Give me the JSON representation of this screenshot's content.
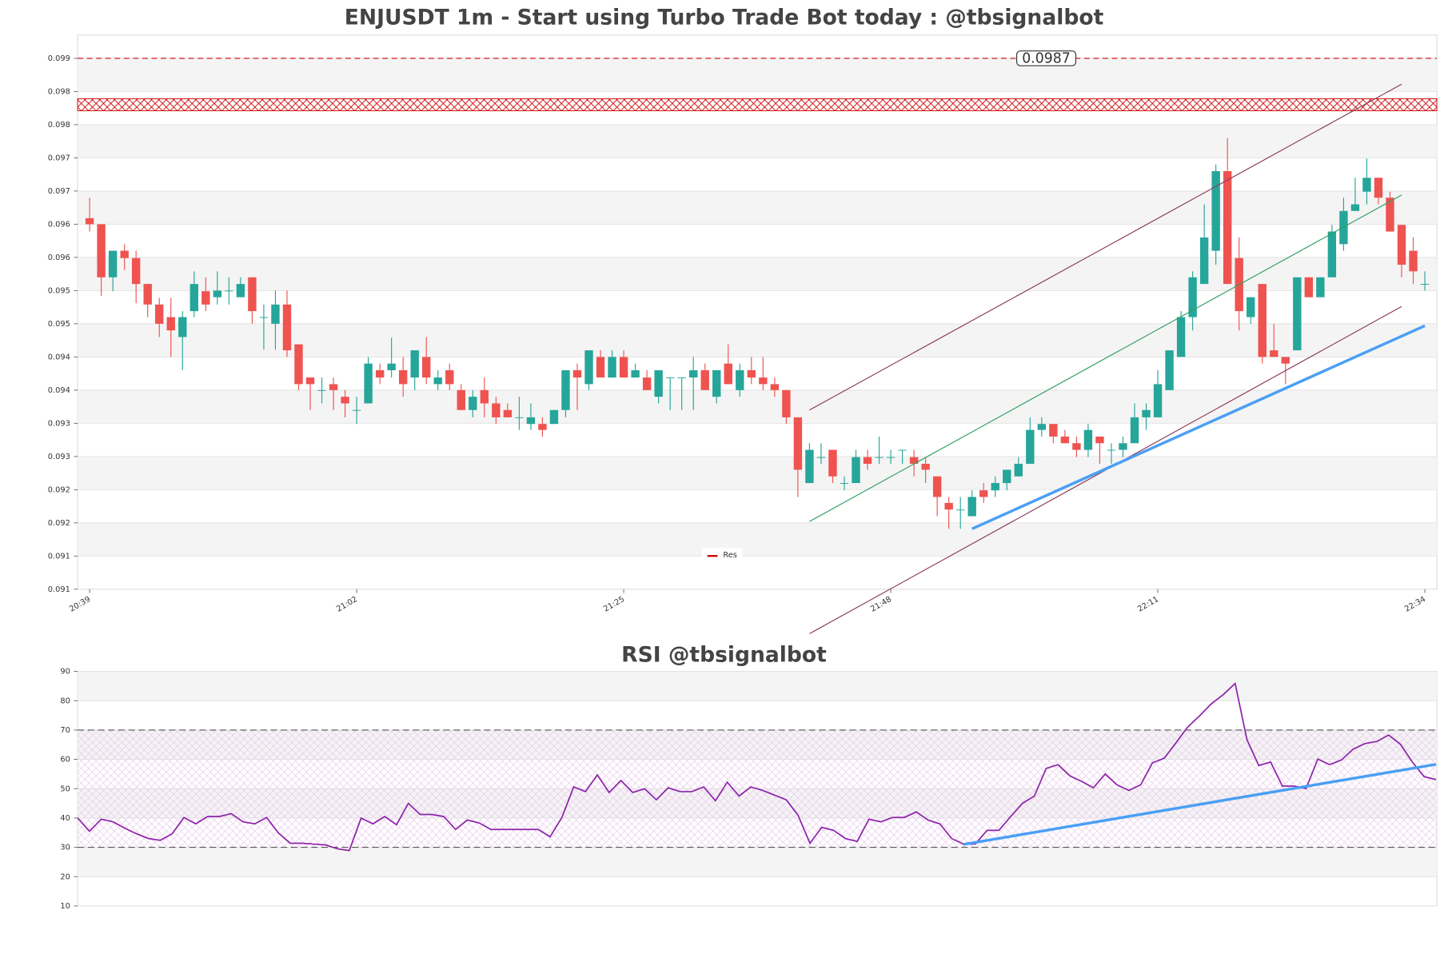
{
  "chart_data": [
    {
      "type": "candlestick",
      "title": "ENJUSDT 1m - Start using Turbo Trade Bot today : @tbsignalbot",
      "categories": [
        "20:39",
        null,
        null,
        null,
        null,
        null,
        null,
        null,
        null,
        null,
        null,
        null,
        null,
        null,
        null,
        null,
        null,
        null,
        null,
        null,
        null,
        null,
        null,
        "21:02",
        null,
        null,
        null,
        null,
        null,
        null,
        null,
        null,
        null,
        null,
        null,
        null,
        null,
        null,
        null,
        null,
        null,
        null,
        null,
        null,
        null,
        null,
        "21:25",
        null,
        null,
        null,
        null,
        null,
        null,
        null,
        null,
        null,
        null,
        null,
        null,
        null,
        null,
        null,
        null,
        null,
        null,
        null,
        null,
        null,
        null,
        "21:48",
        null,
        null,
        null,
        null,
        null,
        null,
        null,
        null,
        null,
        null,
        null,
        null,
        null,
        null,
        null,
        null,
        null,
        null,
        null,
        null,
        null,
        null,
        "22:11",
        null,
        null,
        null,
        null,
        null,
        null,
        null,
        null,
        null,
        null,
        null,
        null,
        null,
        null,
        null,
        null,
        null,
        null,
        null,
        null,
        null,
        null,
        "22:34"
      ],
      "open": [
        0.09629,
        0.0962,
        0.0954,
        0.0958,
        0.09569,
        0.0953,
        0.09499,
        0.0948,
        0.0945,
        0.09489,
        0.09519,
        0.0951,
        0.09519,
        0.0951,
        0.0954,
        0.0948,
        0.0947,
        0.09499,
        0.09439,
        0.09389,
        0.0937,
        0.09379,
        0.0936,
        0.0934,
        0.0935,
        0.094,
        0.094,
        0.094,
        0.09389,
        0.0942,
        0.09379,
        0.094,
        0.0937,
        0.0934,
        0.0937,
        0.0935,
        0.0934,
        0.09329,
        0.09319,
        0.09319,
        0.09319,
        0.0934,
        0.094,
        0.09379,
        0.0942,
        0.09389,
        0.0942,
        0.09389,
        0.09389,
        0.0936,
        0.09389,
        0.09389,
        0.09389,
        0.094,
        0.0936,
        0.0941,
        0.0937,
        0.094,
        0.09389,
        0.09379,
        0.0937,
        0.09329,
        0.0923,
        0.09269,
        0.0928,
        0.0923,
        0.0923,
        0.09269,
        0.09269,
        0.09269,
        0.0928,
        0.09269,
        0.09259,
        0.0924,
        0.092,
        0.0919,
        0.0918,
        0.09219,
        0.09219,
        0.0923,
        0.0924,
        0.09259,
        0.0931,
        0.09319,
        0.093,
        0.0929,
        0.0928,
        0.093,
        0.0928,
        0.0928,
        0.0929,
        0.09329,
        0.09329,
        0.0937,
        0.0942,
        0.0948,
        0.0953,
        0.0958,
        0.097,
        0.09569,
        0.0948,
        0.0953,
        0.0943,
        0.0942,
        0.0943,
        0.0954,
        0.0951,
        0.0954,
        0.0959,
        0.0964,
        0.09669,
        0.0969,
        0.0966,
        0.09619,
        0.0958,
        0.0953
      ],
      "high": [
        0.0966,
        0.0962,
        0.0958,
        0.0959,
        0.0958,
        0.0953,
        0.09509,
        0.09509,
        0.09489,
        0.09549,
        0.0954,
        0.09549,
        0.0954,
        0.0954,
        0.0954,
        0.09499,
        0.0952,
        0.0952,
        0.09439,
        0.09389,
        0.09389,
        0.09389,
        0.0937,
        0.0936,
        0.0942,
        0.0941,
        0.09449,
        0.0942,
        0.0943,
        0.0945,
        0.094,
        0.0941,
        0.09379,
        0.0937,
        0.09389,
        0.0936,
        0.0935,
        0.0936,
        0.0935,
        0.09329,
        0.0934,
        0.094,
        0.0941,
        0.0943,
        0.0943,
        0.0943,
        0.0943,
        0.0941,
        0.094,
        0.094,
        0.09389,
        0.09389,
        0.0942,
        0.0941,
        0.094,
        0.09439,
        0.0941,
        0.0942,
        0.0942,
        0.09389,
        0.0937,
        0.09329,
        0.0929,
        0.0929,
        0.0928,
        0.0924,
        0.0928,
        0.0928,
        0.093,
        0.0928,
        0.0928,
        0.0928,
        0.09269,
        0.0924,
        0.09209,
        0.09209,
        0.09219,
        0.0923,
        0.0924,
        0.0925,
        0.09269,
        0.09329,
        0.09329,
        0.09319,
        0.0931,
        0.093,
        0.09319,
        0.093,
        0.0929,
        0.093,
        0.0935,
        0.0935,
        0.094,
        0.0943,
        0.09489,
        0.09549,
        0.0965,
        0.0971,
        0.0975,
        0.096,
        0.0951,
        0.0953,
        0.0947,
        0.0942,
        0.0954,
        0.0954,
        0.0954,
        0.09619,
        0.0966,
        0.0969,
        0.09719,
        0.0969,
        0.09669,
        0.09619,
        0.096,
        0.09549
      ],
      "low": [
        0.09609,
        0.09512,
        0.09519,
        0.09551,
        0.09501,
        0.0948,
        0.0945,
        0.0942,
        0.094,
        0.0948,
        0.09489,
        0.09499,
        0.09499,
        0.0951,
        0.0947,
        0.09431,
        0.09431,
        0.0942,
        0.0937,
        0.0934,
        0.0935,
        0.0934,
        0.09329,
        0.09319,
        0.0935,
        0.09379,
        0.09389,
        0.0936,
        0.0937,
        0.09379,
        0.0937,
        0.0937,
        0.0934,
        0.09329,
        0.09329,
        0.09319,
        0.09329,
        0.0931,
        0.0931,
        0.093,
        0.09319,
        0.09329,
        0.0934,
        0.0937,
        0.09389,
        0.09389,
        0.09389,
        0.09389,
        0.0937,
        0.0935,
        0.0934,
        0.0934,
        0.0934,
        0.0937,
        0.0935,
        0.09379,
        0.0936,
        0.09379,
        0.0937,
        0.0936,
        0.09319,
        0.09209,
        0.0923,
        0.09259,
        0.0923,
        0.09219,
        0.0923,
        0.0925,
        0.09259,
        0.09259,
        0.09259,
        0.0924,
        0.0923,
        0.0918,
        0.09161,
        0.09161,
        0.0918,
        0.092,
        0.09209,
        0.09219,
        0.0924,
        0.09259,
        0.093,
        0.0929,
        0.0929,
        0.09269,
        0.09269,
        0.09259,
        0.09259,
        0.09269,
        0.0929,
        0.0931,
        0.09329,
        0.0937,
        0.0942,
        0.0946,
        0.0953,
        0.09559,
        0.0953,
        0.0946,
        0.0947,
        0.0941,
        0.0942,
        0.09379,
        0.0943,
        0.0951,
        0.0951,
        0.0954,
        0.0958,
        0.0964,
        0.0965,
        0.0965,
        0.09609,
        0.0954,
        0.0953,
        0.0952
      ],
      "close": [
        0.0962,
        0.0954,
        0.0958,
        0.09569,
        0.0953,
        0.09499,
        0.0947,
        0.0946,
        0.0948,
        0.0953,
        0.09499,
        0.0952,
        0.0952,
        0.0953,
        0.09489,
        0.0948,
        0.09499,
        0.0943,
        0.09379,
        0.09379,
        0.0937,
        0.0937,
        0.0935,
        0.0934,
        0.0941,
        0.09389,
        0.0941,
        0.09379,
        0.0943,
        0.09389,
        0.09389,
        0.09379,
        0.0934,
        0.0936,
        0.0935,
        0.09329,
        0.09329,
        0.09329,
        0.09329,
        0.0931,
        0.0934,
        0.094,
        0.09389,
        0.0943,
        0.09389,
        0.0942,
        0.09389,
        0.094,
        0.0937,
        0.094,
        0.09389,
        0.09389,
        0.094,
        0.0937,
        0.094,
        0.09379,
        0.094,
        0.09389,
        0.09379,
        0.0937,
        0.09329,
        0.0925,
        0.0928,
        0.09269,
        0.0924,
        0.0923,
        0.09269,
        0.09259,
        0.09269,
        0.09269,
        0.0928,
        0.09259,
        0.0925,
        0.09209,
        0.0919,
        0.0919,
        0.09209,
        0.09209,
        0.0923,
        0.0925,
        0.09259,
        0.0931,
        0.09319,
        0.093,
        0.0929,
        0.0928,
        0.0931,
        0.0929,
        0.0928,
        0.0929,
        0.09329,
        0.0934,
        0.09379,
        0.0943,
        0.0948,
        0.0954,
        0.096,
        0.097,
        0.0953,
        0.09489,
        0.0951,
        0.0942,
        0.0942,
        0.0941,
        0.0954,
        0.0951,
        0.0954,
        0.09609,
        0.0964,
        0.0965,
        0.0969,
        0.0966,
        0.09609,
        0.09559,
        0.09549,
        0.0953
      ],
      "up_color": "#26a69a",
      "down_color": "#ef5350",
      "ylim": [
        0.0907,
        0.09905
      ],
      "yticks": [
        {
          "value": 0.0907,
          "label": "0.091"
        },
        {
          "value": 0.0912,
          "label": "0.091"
        },
        {
          "value": 0.0917,
          "label": "0.092"
        },
        {
          "value": 0.0922,
          "label": "0.092"
        },
        {
          "value": 0.0927,
          "label": "0.093"
        },
        {
          "value": 0.0932,
          "label": "0.093"
        },
        {
          "value": 0.0937,
          "label": "0.094"
        },
        {
          "value": 0.0942,
          "label": "0.094"
        },
        {
          "value": 0.0947,
          "label": "0.095"
        },
        {
          "value": 0.0952,
          "label": "0.095"
        },
        {
          "value": 0.0957,
          "label": "0.096"
        },
        {
          "value": 0.0962,
          "label": "0.096"
        },
        {
          "value": 0.0967,
          "label": "0.097"
        },
        {
          "value": 0.0972,
          "label": "0.097"
        },
        {
          "value": 0.0977,
          "label": "0.098"
        },
        {
          "value": 0.0982,
          "label": "0.098"
        },
        {
          "value": 0.0987,
          "label": "0.099"
        }
      ],
      "grid": true,
      "resistance": {
        "name": "Res",
        "value": 0.0987,
        "label": "0.0987",
        "color": "#cc0000"
      },
      "zone": [
        0.09791,
        0.09809
      ],
      "trendlines": [
        {
          "color": "#8b3a5a",
          "x": [
            62,
            113
          ],
          "values": [
            0.0934,
            0.09831
          ]
        },
        {
          "color": "#8b3a5a",
          "x": [
            62,
            113
          ],
          "values": [
            0.09003,
            0.09496
          ]
        },
        {
          "color": "#2e9e5e",
          "x": [
            62,
            113
          ],
          "values": [
            0.09172,
            0.09664
          ]
        },
        {
          "color": "#4a9ff5",
          "x": [
            76,
            115
          ],
          "values": [
            0.09161,
            0.09467
          ]
        }
      ]
    },
    {
      "type": "line",
      "title": "RSI @tbsignalbot",
      "values": [
        40,
        35.5,
        39.6,
        38.7,
        36.5,
        34.6,
        33,
        32.4,
        34.6,
        40.2,
        38,
        40.5,
        40.5,
        41.5,
        38.7,
        38,
        40.2,
        34.9,
        31.4,
        31.4,
        31.1,
        30.8,
        29.5,
        28.9,
        40,
        38,
        40.5,
        37.7,
        45,
        41.2,
        41.2,
        40.5,
        36.1,
        39.3,
        38.3,
        36.1,
        36.1,
        36.1,
        36.1,
        36.1,
        33.6,
        40.2,
        50.6,
        49,
        54.7,
        48.7,
        52.8,
        48.7,
        50,
        46.2,
        50.3,
        49,
        49,
        50.6,
        45.9,
        52.2,
        47.5,
        50.6,
        49.4,
        47.8,
        46.2,
        40.9,
        31.4,
        36.8,
        35.8,
        33,
        32,
        39.6,
        38.7,
        40.2,
        40.2,
        42.1,
        39.3,
        38,
        33,
        31.1,
        31.1,
        35.8,
        35.8,
        40.5,
        45,
        47.5,
        56.9,
        58.2,
        54.4,
        52.5,
        50.3,
        55,
        51.3,
        49.4,
        51.3,
        58.8,
        60.4,
        65.7,
        71.1,
        74.9,
        79,
        82.1,
        85.9,
        66.7,
        57.9,
        59.1,
        50.9,
        50.9,
        50,
        60.1,
        58.2,
        59.8,
        63.5,
        65.4,
        66.1,
        68.3,
        65.1,
        59.1,
        54.1,
        53.1
      ],
      "color": "#8e24aa",
      "ylim": [
        10,
        90
      ],
      "yticks": [
        10,
        20,
        30,
        40,
        50,
        60,
        70,
        80,
        90
      ],
      "grid": true,
      "levels": [
        30,
        70
      ],
      "trendline": {
        "color": "#4a9ff5",
        "x": [
          75,
          115
        ],
        "values": [
          31,
          58.3
        ]
      }
    }
  ]
}
